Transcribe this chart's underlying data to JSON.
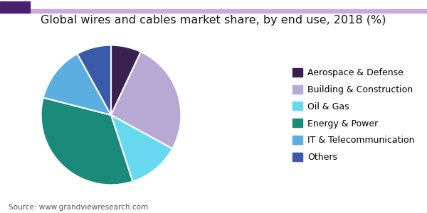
{
  "title": "Global wires and cables market share, by end use, 2018 (%)",
  "labels": [
    "Aerospace & Defense",
    "Building & Construction",
    "Oil & Gas",
    "Energy & Power",
    "IT & Telecommunication",
    "Others"
  ],
  "sizes": [
    7,
    26,
    12,
    34,
    13,
    8
  ],
  "colors": [
    "#3b1f4e",
    "#b8a9d4",
    "#66d9f0",
    "#1a8a7a",
    "#5baee0",
    "#3a5aaa"
  ],
  "startangle": 90,
  "source_text": "Source: www.grandviewresearch.com",
  "title_fontsize": 11.5,
  "legend_fontsize": 9,
  "source_fontsize": 7.5,
  "header_color_dark": "#4a2070",
  "header_color_light": "#c9a8e0",
  "background_color": "#ffffff"
}
